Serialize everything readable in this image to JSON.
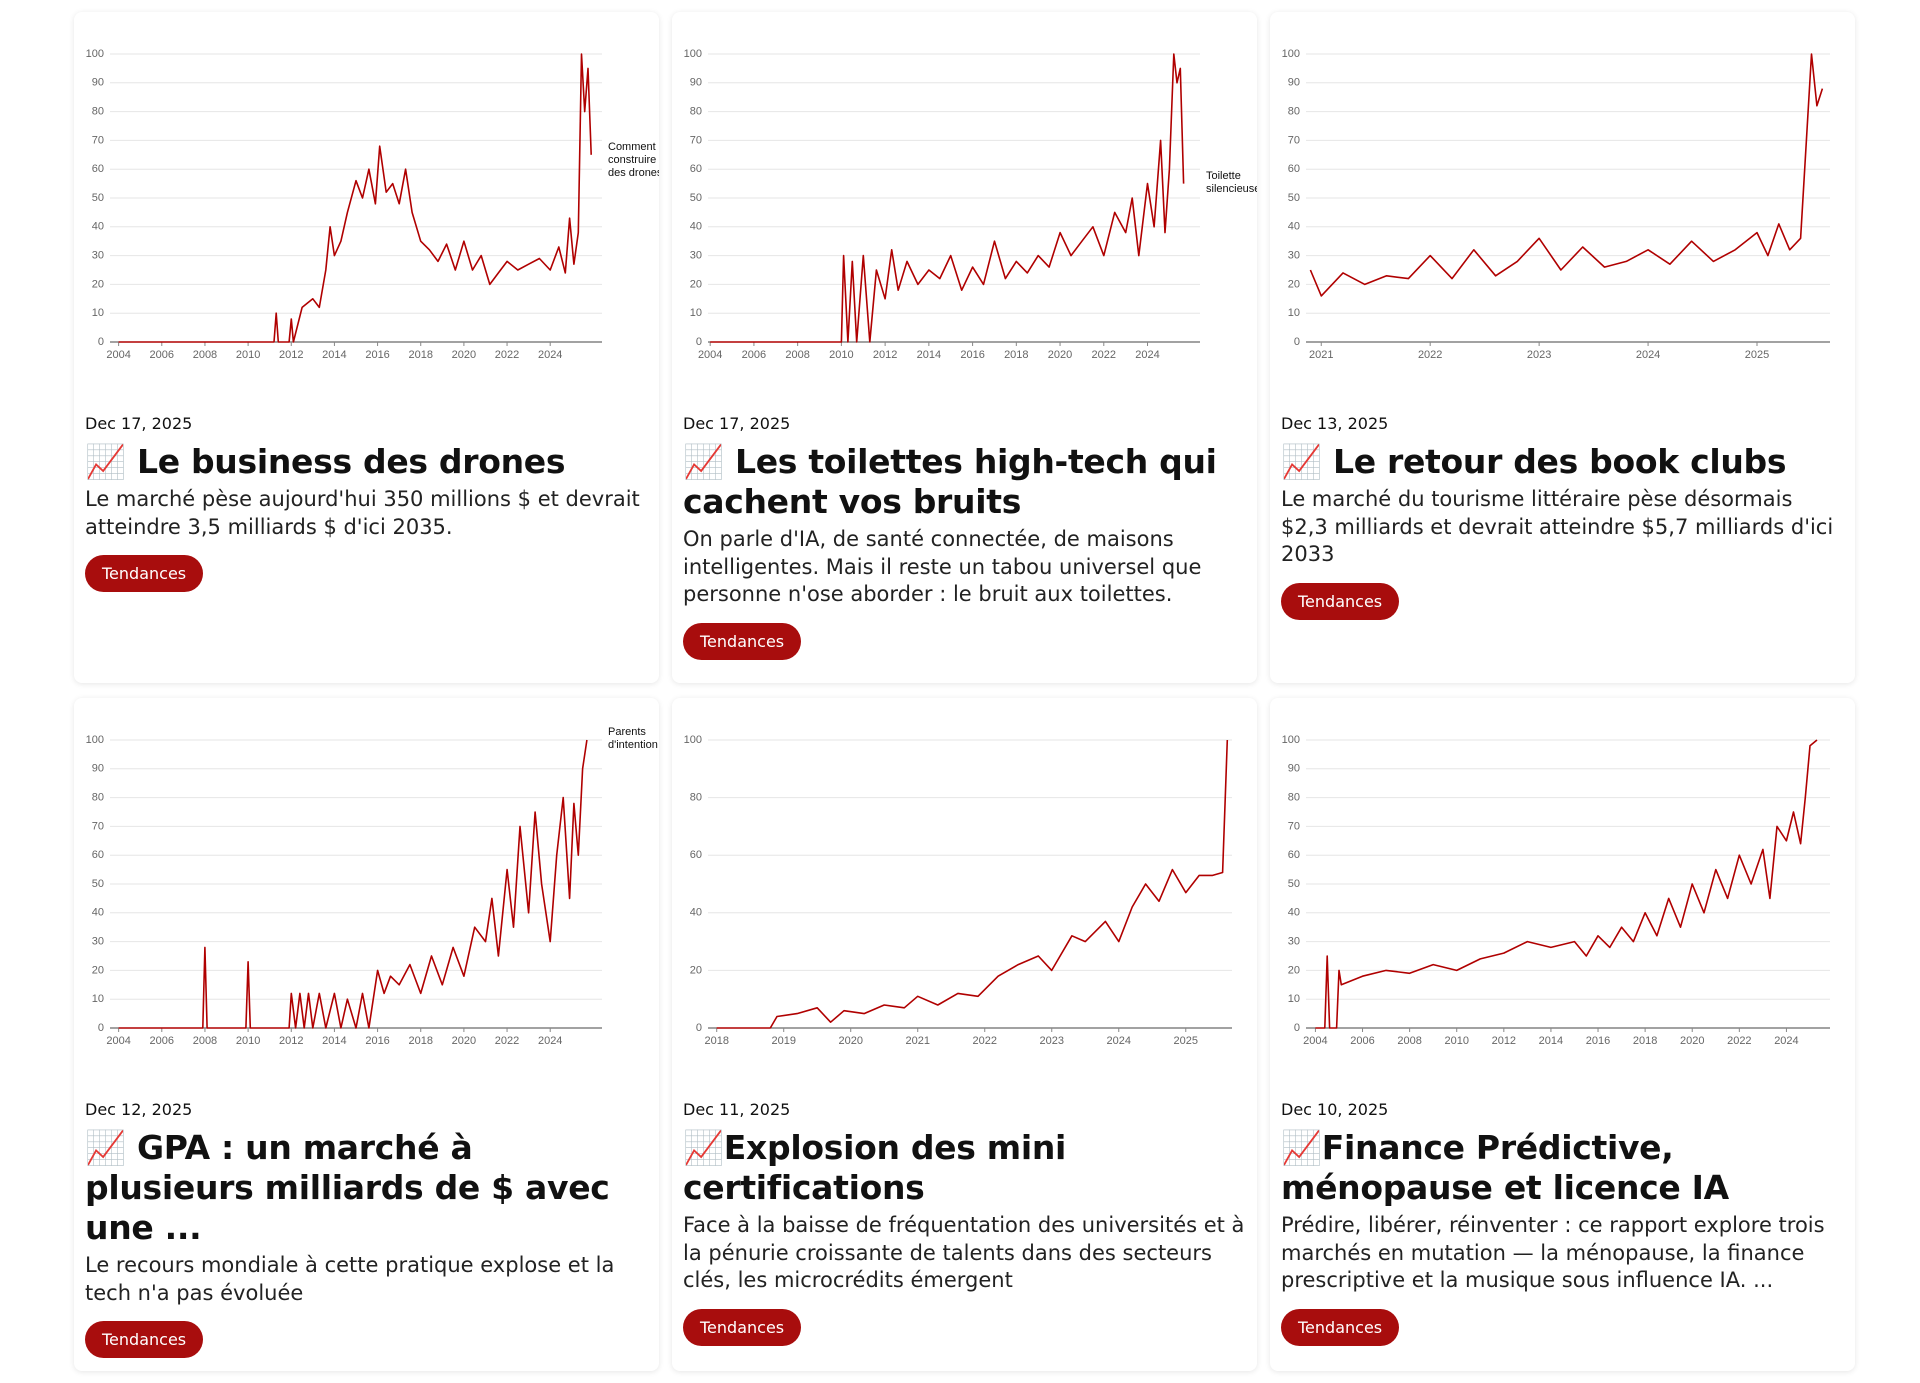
{
  "cards": [
    {
      "date": "Dec 17, 2025",
      "title": "📈 Le business des drones",
      "excerpt": "Le marché pèse aujourd'hui 350 millions $ et devrait atteindre 3,5 milliards $ d'ici 2035.",
      "tag": "Tendances",
      "chart": {
        "type": "line",
        "color": "#b00000",
        "annotation": "Comment construire des drones",
        "xlim": [
          2003.6,
          2026.4
        ],
        "ylim": [
          0,
          100
        ],
        "xticks": [
          2004,
          2006,
          2008,
          2010,
          2012,
          2014,
          2016,
          2018,
          2020,
          2022,
          2024
        ],
        "yticks": [
          0,
          10,
          20,
          30,
          40,
          50,
          60,
          70,
          80,
          90,
          100
        ],
        "x": [
          2004,
          2011.2,
          2011.3,
          2011.4,
          2011.9,
          2012,
          2012.1,
          2012.5,
          2013,
          2013.3,
          2013.6,
          2013.8,
          2014,
          2014.3,
          2014.6,
          2015,
          2015.3,
          2015.6,
          2015.9,
          2016.1,
          2016.4,
          2016.7,
          2017,
          2017.3,
          2017.6,
          2018,
          2018.4,
          2018.8,
          2019.2,
          2019.6,
          2020,
          2020.4,
          2020.8,
          2021.2,
          2021.6,
          2022,
          2022.5,
          2023,
          2023.5,
          2024,
          2024.4,
          2024.7,
          2024.9,
          2025.1,
          2025.3,
          2025.45,
          2025.6,
          2025.75,
          2025.9
        ],
        "values": [
          0,
          0,
          10,
          0,
          0,
          8,
          0,
          12,
          15,
          12,
          25,
          40,
          30,
          35,
          45,
          56,
          50,
          60,
          48,
          68,
          52,
          55,
          48,
          60,
          45,
          35,
          32,
          28,
          34,
          25,
          35,
          25,
          30,
          20,
          24,
          28,
          25,
          27,
          29,
          25,
          33,
          24,
          43,
          27,
          38,
          100,
          80,
          95,
          65
        ]
      }
    },
    {
      "date": "Dec 17, 2025",
      "title": "📈 Les toilettes high-tech qui cachent vos bruits",
      "excerpt": "On parle d'IA, de santé connectée, de maisons intelligentes. Mais il reste un tabou universel que personne n'ose aborder : le bruit aux toilettes.",
      "tag": "Tendances",
      "chart": {
        "type": "line",
        "color": "#b00000",
        "annotation": "Toilette silencieuse",
        "xlim": [
          2003.9,
          2026.4
        ],
        "ylim": [
          0,
          100
        ],
        "xticks": [
          2004,
          2006,
          2008,
          2010,
          2012,
          2014,
          2016,
          2018,
          2020,
          2022,
          2024
        ],
        "yticks": [
          0,
          10,
          20,
          30,
          40,
          50,
          60,
          70,
          80,
          90,
          100
        ],
        "x": [
          2004,
          2010,
          2010.1,
          2010.3,
          2010.5,
          2010.7,
          2011,
          2011.3,
          2011.6,
          2012,
          2012.3,
          2012.6,
          2013,
          2013.5,
          2014,
          2014.5,
          2015,
          2015.5,
          2016,
          2016.5,
          2017,
          2017.5,
          2018,
          2018.5,
          2019,
          2019.5,
          2020,
          2020.5,
          2021,
          2021.5,
          2022,
          2022.5,
          2023,
          2023.3,
          2023.6,
          2024,
          2024.3,
          2024.6,
          2024.8,
          2025,
          2025.2,
          2025.35,
          2025.5,
          2025.65
        ],
        "values": [
          0,
          0,
          30,
          0,
          28,
          0,
          30,
          0,
          25,
          15,
          32,
          18,
          28,
          20,
          25,
          22,
          30,
          18,
          26,
          20,
          35,
          22,
          28,
          24,
          30,
          26,
          38,
          30,
          35,
          40,
          30,
          45,
          38,
          50,
          30,
          55,
          40,
          70,
          38,
          60,
          100,
          90,
          95,
          55
        ]
      }
    },
    {
      "date": "Dec 13, 2025",
      "title": "📈 Le retour des book clubs",
      "excerpt": "Le marché du tourisme littéraire pèse désormais $2,3 milliards et devrait atteindre $5,7 milliards d'ici 2033",
      "tag": "Tendances",
      "chart": {
        "type": "line",
        "color": "#b00000",
        "xlim": [
          2020.86,
          2025.67
        ],
        "ylim": [
          0,
          100
        ],
        "xticks": [
          2021,
          2022,
          2023,
          2024,
          2025
        ],
        "yticks": [
          0,
          10,
          20,
          30,
          40,
          50,
          60,
          70,
          80,
          90,
          100
        ],
        "x": [
          2020.9,
          2021,
          2021.2,
          2021.4,
          2021.6,
          2021.8,
          2022,
          2022.2,
          2022.4,
          2022.6,
          2022.8,
          2023,
          2023.2,
          2023.4,
          2023.6,
          2023.8,
          2024,
          2024.2,
          2024.4,
          2024.6,
          2024.8,
          2025,
          2025.1,
          2025.2,
          2025.3,
          2025.4,
          2025.5,
          2025.55,
          2025.6
        ],
        "values": [
          25,
          16,
          24,
          20,
          23,
          22,
          30,
          22,
          32,
          23,
          28,
          36,
          25,
          33,
          26,
          28,
          32,
          27,
          35,
          28,
          32,
          38,
          30,
          41,
          32,
          36,
          100,
          82,
          88
        ]
      }
    },
    {
      "date": "Dec 12, 2025",
      "title": "📈 GPA : un marché à plusieurs milliards de $ avec une ...",
      "excerpt": "Le recours mondiale à cette pratique explose et la tech n'a pas évoluée",
      "tag": "Tendances",
      "chart": {
        "type": "line",
        "color": "#b00000",
        "annotation": "Parents d'intention",
        "xlim": [
          2003.6,
          2026.4
        ],
        "ylim": [
          0,
          100
        ],
        "xticks": [
          2004,
          2006,
          2008,
          2010,
          2012,
          2014,
          2016,
          2018,
          2020,
          2022,
          2024
        ],
        "yticks": [
          0,
          10,
          20,
          30,
          40,
          50,
          60,
          70,
          80,
          90,
          100
        ],
        "x": [
          2004,
          2007.9,
          2008,
          2008.1,
          2009.9,
          2010,
          2010.1,
          2011.9,
          2012,
          2012.2,
          2012.4,
          2012.6,
          2012.8,
          2013,
          2013.3,
          2013.6,
          2014,
          2014.3,
          2014.6,
          2015,
          2015.3,
          2015.6,
          2016,
          2016.3,
          2016.6,
          2017,
          2017.5,
          2018,
          2018.5,
          2019,
          2019.5,
          2020,
          2020.5,
          2021,
          2021.3,
          2021.6,
          2022,
          2022.3,
          2022.6,
          2023,
          2023.3,
          2023.6,
          2024,
          2024.3,
          2024.6,
          2024.9,
          2025.1,
          2025.3,
          2025.5,
          2025.7
        ],
        "values": [
          0,
          0,
          28,
          0,
          0,
          23,
          0,
          0,
          12,
          0,
          12,
          0,
          12,
          0,
          12,
          0,
          12,
          0,
          10,
          0,
          12,
          0,
          20,
          12,
          18,
          15,
          22,
          12,
          25,
          15,
          28,
          18,
          35,
          30,
          45,
          25,
          55,
          35,
          70,
          40,
          75,
          50,
          30,
          60,
          80,
          45,
          78,
          60,
          90,
          100
        ]
      }
    },
    {
      "date": "Dec 11, 2025",
      "title": "📈Explosion des mini certifications",
      "excerpt": "Face à la baisse de fréquentation des universités et à la pénurie croissante de talents dans des secteurs clés, les microcrédits émergent",
      "tag": "Tendances",
      "chart": {
        "type": "line",
        "color": "#b00000",
        "xlim": [
          2017.87,
          2025.69
        ],
        "ylim": [
          0,
          100
        ],
        "xticks": [
          2018,
          2019,
          2020,
          2021,
          2022,
          2023,
          2024,
          2025
        ],
        "yticks": [
          0,
          20,
          40,
          60,
          80,
          100
        ],
        "x": [
          2018,
          2018.8,
          2018.9,
          2019.2,
          2019.5,
          2019.7,
          2019.9,
          2020.2,
          2020.5,
          2020.8,
          2021,
          2021.3,
          2021.6,
          2021.9,
          2022.2,
          2022.5,
          2022.8,
          2023,
          2023.3,
          2023.5,
          2023.8,
          2024,
          2024.2,
          2024.4,
          2024.6,
          2024.8,
          2025,
          2025.2,
          2025.4,
          2025.55,
          2025.62
        ],
        "values": [
          0,
          0,
          4,
          5,
          7,
          2,
          6,
          5,
          8,
          7,
          11,
          8,
          12,
          11,
          18,
          22,
          25,
          20,
          32,
          30,
          37,
          30,
          42,
          50,
          44,
          55,
          47,
          53,
          53,
          54,
          100
        ]
      }
    },
    {
      "date": "Dec 10, 2025",
      "title": "📈Finance Prédictive, ménopause et licence IA",
      "excerpt": "Prédire, libérer, réinventer : ce rapport explore trois marchés en mutation — la ménopause, la finance prescriptive et la musique sous influence IA. ...",
      "tag": "Tendances",
      "chart": {
        "type": "line",
        "color": "#b00000",
        "xlim": [
          2003.6,
          2025.85
        ],
        "ylim": [
          0,
          100
        ],
        "xticks": [
          2004,
          2006,
          2008,
          2010,
          2012,
          2014,
          2016,
          2018,
          2020,
          2022,
          2024
        ],
        "yticks": [
          0,
          10,
          20,
          30,
          40,
          50,
          60,
          70,
          80,
          90,
          100
        ],
        "x": [
          2004,
          2004.4,
          2004.5,
          2004.6,
          2004.9,
          2005,
          2005.1,
          2006,
          2007,
          2008,
          2009,
          2010,
          2011,
          2012,
          2013,
          2014,
          2015,
          2015.5,
          2016,
          2016.5,
          2017,
          2017.5,
          2018,
          2018.5,
          2019,
          2019.5,
          2020,
          2020.5,
          2021,
          2021.5,
          2022,
          2022.5,
          2023,
          2023.3,
          2023.6,
          2024,
          2024.3,
          2024.6,
          2024.8,
          2025,
          2025.3
        ],
        "values": [
          0,
          0,
          25,
          0,
          0,
          20,
          15,
          18,
          20,
          19,
          22,
          20,
          24,
          26,
          30,
          28,
          30,
          25,
          32,
          28,
          35,
          30,
          40,
          32,
          45,
          35,
          50,
          40,
          55,
          45,
          60,
          50,
          62,
          45,
          70,
          65,
          75,
          64,
          80,
          98,
          100
        ]
      }
    }
  ]
}
